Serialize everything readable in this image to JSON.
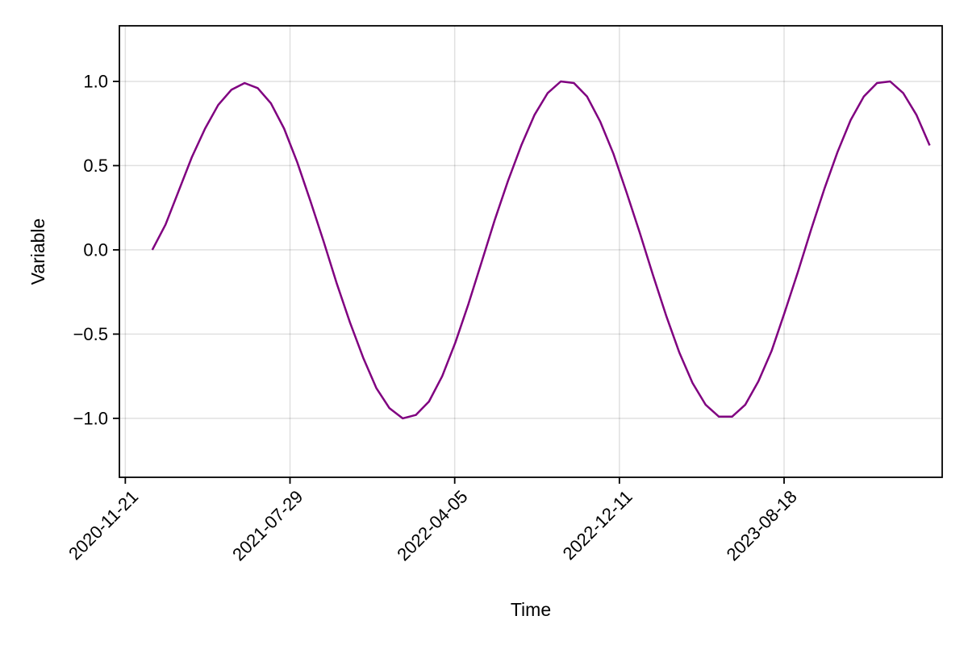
{
  "chart_data": {
    "type": "line",
    "title": "",
    "xlabel": "Time",
    "ylabel": "Variable",
    "x_axis": {
      "kind": "date",
      "range": [
        "2020-11-12",
        "2024-04-14"
      ],
      "ticks": [
        "2020-11-21",
        "2021-07-29",
        "2022-04-05",
        "2022-12-11",
        "2023-08-18"
      ],
      "tick_labels": [
        "2020-11-21",
        "2021-07-29",
        "2022-04-05",
        "2022-12-11",
        "2023-08-18"
      ],
      "tick_label_rotation_deg": 45
    },
    "y_axis": {
      "range": [
        -1.35,
        1.33
      ],
      "ticks": [
        -1.0,
        -0.5,
        0.0,
        0.5,
        1.0
      ],
      "tick_labels": [
        "−1.0",
        "−0.5",
        "0.0",
        "0.5",
        "1.0"
      ]
    },
    "grid": true,
    "legend": "none",
    "series": [
      {
        "color": "#800080",
        "x": [
          "2021-01-01",
          "2021-01-21",
          "2021-02-10",
          "2021-03-02",
          "2021-03-22",
          "2021-04-11",
          "2021-05-01",
          "2021-05-21",
          "2021-06-10",
          "2021-06-30",
          "2021-07-20",
          "2021-08-09",
          "2021-08-29",
          "2021-09-18",
          "2021-10-08",
          "2021-10-28",
          "2021-11-17",
          "2021-12-07",
          "2021-12-27",
          "2022-01-16",
          "2022-02-05",
          "2022-02-25",
          "2022-03-17",
          "2022-04-06",
          "2022-04-26",
          "2022-05-16",
          "2022-06-05",
          "2022-06-25",
          "2022-07-15",
          "2022-08-04",
          "2022-08-24",
          "2022-09-13",
          "2022-10-03",
          "2022-10-23",
          "2022-11-12",
          "2022-12-02",
          "2022-12-22",
          "2023-01-11",
          "2023-01-31",
          "2023-02-20",
          "2023-03-12",
          "2023-04-01",
          "2023-04-21",
          "2023-05-11",
          "2023-05-31",
          "2023-06-20",
          "2023-07-10",
          "2023-07-30",
          "2023-08-19",
          "2023-09-08",
          "2023-09-28",
          "2023-10-18",
          "2023-11-07",
          "2023-11-27",
          "2023-12-17",
          "2024-01-06",
          "2024-01-26",
          "2024-02-15",
          "2024-03-06",
          "2024-03-26"
        ],
        "values": [
          0.0,
          0.15,
          0.35,
          0.55,
          0.72,
          0.86,
          0.95,
          0.99,
          0.96,
          0.87,
          0.72,
          0.52,
          0.29,
          0.05,
          -0.2,
          -0.43,
          -0.64,
          -0.82,
          -0.94,
          -1.0,
          -0.98,
          -0.9,
          -0.75,
          -0.55,
          -0.32,
          -0.07,
          0.18,
          0.41,
          0.62,
          0.8,
          0.93,
          1.0,
          0.99,
          0.91,
          0.76,
          0.57,
          0.34,
          0.1,
          -0.15,
          -0.39,
          -0.61,
          -0.79,
          -0.92,
          -0.99,
          -0.99,
          -0.92,
          -0.78,
          -0.6,
          -0.37,
          -0.13,
          0.12,
          0.36,
          0.58,
          0.77,
          0.91,
          0.99,
          1.0,
          0.93,
          0.8,
          0.62
        ]
      }
    ]
  }
}
